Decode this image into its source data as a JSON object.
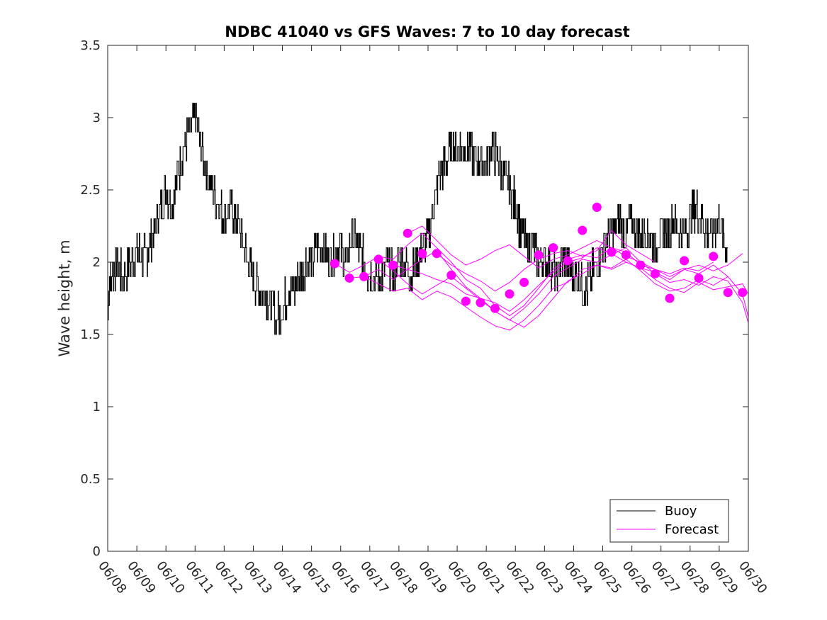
{
  "chart_data": {
    "type": "line",
    "title": "NDBC 41040 vs GFS Waves: 7 to 10 day forecast",
    "xlabel": "",
    "ylabel": "Wave height, m",
    "xlim": [
      "06/08",
      "06/30"
    ],
    "ylim": [
      0,
      3.5
    ],
    "yticks": [
      "0",
      "0.5",
      "1",
      "1.5",
      "2",
      "2.5",
      "3",
      "3.5"
    ],
    "xticks": [
      "06/08",
      "06/09",
      "06/10",
      "06/11",
      "06/12",
      "06/13",
      "06/14",
      "06/15",
      "06/16",
      "06/17",
      "06/18",
      "06/19",
      "06/20",
      "06/21",
      "06/22",
      "06/23",
      "06/24",
      "06/25",
      "06/26",
      "06/27",
      "06/28",
      "06/29",
      "06/30"
    ],
    "grid": false,
    "legend_position": "bottom-right",
    "colors": {
      "buoy": "#000000",
      "forecast": "#ff00ff",
      "axis": "#262626"
    },
    "series": [
      {
        "name": "Buoy",
        "color": "#000000",
        "x_days": [
          0.0,
          0.1,
          0.3,
          0.5,
          0.8,
          1.0,
          1.2,
          1.4,
          1.6,
          1.8,
          2.0,
          2.2,
          2.4,
          2.6,
          2.8,
          3.0,
          3.2,
          3.4,
          3.6,
          3.8,
          4.0,
          4.2,
          4.4,
          4.6,
          4.8,
          5.0,
          5.2,
          5.4,
          5.6,
          5.8,
          6.0,
          6.2,
          6.4,
          6.6,
          6.8,
          7.0,
          7.2,
          7.4,
          7.6,
          7.8,
          8.0,
          8.2,
          8.4,
          8.6,
          8.8,
          9.0,
          9.2,
          9.4,
          9.6,
          9.8,
          10.0,
          10.2,
          10.4,
          10.6,
          10.8,
          11.0,
          11.2,
          11.4,
          11.6,
          11.8,
          12.0,
          12.2,
          12.4,
          12.6,
          12.8,
          13.0,
          13.2,
          13.4,
          13.6,
          13.8,
          14.0,
          14.2,
          14.4,
          14.6,
          14.8,
          15.0,
          15.2,
          15.4,
          15.6,
          15.8,
          16.0,
          16.2,
          16.4,
          16.6,
          16.8,
          17.0,
          17.2,
          17.4,
          17.6,
          17.8,
          18.0,
          18.2,
          18.4,
          18.6,
          18.8,
          19.0,
          19.2,
          19.4,
          19.6,
          19.8,
          20.0,
          20.2,
          20.4,
          20.6,
          20.8,
          21.0,
          21.2,
          21.3
        ],
        "y": [
          1.7,
          1.9,
          2.0,
          1.9,
          2.0,
          2.1,
          2.0,
          2.1,
          2.2,
          2.4,
          2.5,
          2.4,
          2.6,
          2.8,
          2.9,
          3.0,
          2.8,
          2.6,
          2.5,
          2.4,
          2.3,
          2.4,
          2.3,
          2.2,
          2.0,
          1.9,
          1.8,
          1.8,
          1.7,
          1.6,
          1.7,
          1.8,
          1.8,
          1.9,
          2.0,
          2.0,
          2.1,
          2.1,
          2.0,
          2.1,
          2.1,
          2.0,
          2.2,
          2.1,
          2.0,
          1.9,
          1.9,
          1.9,
          2.0,
          1.9,
          2.0,
          2.0,
          1.9,
          2.0,
          2.1,
          2.2,
          2.4,
          2.6,
          2.7,
          2.8,
          2.8,
          2.8,
          2.8,
          2.7,
          2.7,
          2.7,
          2.8,
          2.7,
          2.6,
          2.5,
          2.4,
          2.2,
          2.1,
          2.1,
          2.0,
          2.0,
          2.0,
          1.9,
          2.0,
          2.0,
          1.9,
          1.9,
          1.8,
          1.9,
          2.0,
          2.1,
          2.2,
          2.2,
          2.3,
          2.2,
          2.3,
          2.2,
          2.2,
          2.2,
          2.1,
          2.2,
          2.2,
          2.3,
          2.2,
          2.2,
          2.3,
          2.4,
          2.3,
          2.2,
          2.2,
          2.3,
          2.1,
          2.1
        ]
      },
      {
        "name": "Forecast",
        "color": "#ff00ff",
        "markers": {
          "x_days": [
            7.8,
            8.3,
            8.8,
            9.3,
            9.8,
            10.3,
            10.8,
            11.3,
            11.8,
            12.3,
            12.8,
            13.3,
            13.8,
            14.3,
            14.8,
            15.3,
            15.8,
            16.3,
            16.8,
            17.3,
            17.8,
            18.3,
            18.8,
            19.3,
            19.8,
            20.3,
            20.8,
            21.3,
            21.8
          ],
          "y": [
            1.99,
            1.89,
            1.9,
            2.02,
            1.98,
            2.2,
            2.06,
            2.06,
            1.91,
            1.73,
            1.72,
            1.68,
            1.78,
            1.86,
            2.05,
            2.1,
            2.01,
            2.22,
            2.38,
            2.07,
            2.05,
            1.98,
            1.92,
            1.75,
            2.01,
            1.89,
            2.04,
            1.79,
            1.79
          ]
        },
        "runs": [
          {
            "x_days": [
              7.8,
              8.3,
              8.8,
              9.3,
              9.8,
              10.3,
              10.8,
              11.3,
              11.8,
              12.3,
              12.8,
              13.3,
              13.8,
              14.3,
              14.8,
              15.3,
              15.8,
              16.3,
              16.8,
              17.3,
              17.8,
              18.3,
              18.8,
              19.3,
              19.8,
              20.3,
              20.8,
              21.3,
              21.8,
              22.0
            ],
            "y": [
              1.99,
              1.93,
              1.98,
              2.04,
              2.02,
              2.12,
              2.2,
              2.1,
              2.0,
              1.88,
              1.82,
              1.7,
              1.63,
              1.7,
              1.82,
              1.95,
              2.02,
              2.05,
              2.03,
              2.1,
              2.07,
              1.98,
              1.95,
              1.9,
              1.95,
              1.92,
              1.98,
              1.9,
              1.78,
              1.62
            ]
          },
          {
            "x_days": [
              8.3,
              8.8,
              9.3,
              9.8,
              10.3,
              10.8,
              11.3,
              11.8,
              12.3,
              12.8,
              13.3,
              13.8,
              14.3,
              14.8,
              15.3,
              15.8,
              16.3,
              16.8,
              17.3,
              17.8,
              18.3,
              18.8,
              19.3,
              19.8,
              20.3,
              20.8,
              21.3,
              21.8,
              22.0
            ],
            "y": [
              1.89,
              1.9,
              1.95,
              1.88,
              1.95,
              2.02,
              2.08,
              1.95,
              1.83,
              1.75,
              1.66,
              1.6,
              1.68,
              1.78,
              1.9,
              1.96,
              2.02,
              2.0,
              2.05,
              2.1,
              2.0,
              1.92,
              1.86,
              1.88,
              1.84,
              1.9,
              1.87,
              1.72,
              1.58
            ]
          },
          {
            "x_days": [
              8.8,
              9.3,
              9.8,
              10.3,
              10.8,
              11.3,
              11.8,
              12.3,
              12.8,
              13.3,
              13.8,
              14.3,
              14.8,
              15.3,
              15.8,
              16.3,
              16.8,
              17.3,
              17.8,
              18.3,
              18.8,
              19.3,
              19.8,
              20.3,
              20.8,
              21.3,
              21.8,
              22.0
            ],
            "y": [
              1.9,
              1.85,
              1.8,
              1.82,
              1.74,
              1.8,
              1.76,
              1.69,
              1.62,
              1.56,
              1.53,
              1.6,
              1.7,
              1.82,
              1.86,
              1.95,
              1.98,
              1.95,
              2.0,
              1.96,
              1.88,
              1.82,
              1.79,
              1.86,
              1.81,
              1.83,
              1.85,
              1.78
            ]
          },
          {
            "x_days": [
              9.3,
              9.8,
              10.3,
              10.8,
              11.3,
              11.8,
              12.3,
              12.8,
              13.3,
              13.8,
              14.3,
              14.8,
              15.3,
              15.8,
              16.3,
              16.8,
              17.3,
              17.8,
              18.3,
              18.8,
              19.3,
              19.8,
              20.3,
              20.8,
              21.3
            ],
            "y": [
              2.02,
              1.94,
              1.85,
              1.78,
              1.84,
              1.9,
              1.82,
              1.74,
              1.66,
              1.6,
              1.55,
              1.63,
              1.75,
              1.87,
              1.92,
              1.98,
              1.96,
              2.02,
              1.94,
              1.85,
              1.8,
              1.82,
              1.88,
              1.84,
              1.9
            ]
          },
          {
            "x_days": [
              9.8,
              10.3,
              10.8,
              11.3,
              11.8,
              12.3,
              12.8,
              13.3,
              13.8,
              14.3,
              14.8,
              15.3,
              15.8,
              16.3,
              16.8,
              17.3,
              17.8,
              18.3,
              18.8,
              19.3,
              19.8,
              20.3,
              20.8,
              21.3,
              21.8
            ],
            "y": [
              1.98,
              1.95,
              1.92,
              1.88,
              1.85,
              1.78,
              1.75,
              1.72,
              1.66,
              1.74,
              1.84,
              1.93,
              2.0,
              2.03,
              2.1,
              2.06,
              2.0,
              1.96,
              1.93,
              1.88,
              1.95,
              1.98,
              1.94,
              1.98,
              2.06
            ]
          },
          {
            "x_days": [
              10.3,
              10.8,
              11.3,
              11.8,
              12.3,
              12.8,
              13.3,
              13.8,
              14.3,
              14.8,
              15.3,
              15.8,
              16.3,
              16.8,
              17.3,
              17.8,
              18.3,
              18.8,
              19.3,
              19.8,
              20.3,
              20.8
            ],
            "y": [
              2.2,
              2.25,
              2.15,
              2.05,
              1.98,
              2.02,
              2.08,
              2.12,
              2.04,
              1.96,
              2.02,
              2.05,
              2.1,
              2.15,
              2.1,
              2.04,
              2.0,
              1.95,
              1.92,
              1.96,
              1.94,
              2.0
            ]
          },
          {
            "x_days": [
              11.3,
              11.8,
              12.3,
              12.8,
              13.3,
              13.8,
              14.3,
              14.8,
              15.3,
              15.8,
              16.3,
              16.8,
              17.3,
              17.8,
              18.3,
              18.8
            ],
            "y": [
              2.06,
              1.98,
              1.92,
              1.87,
              1.8,
              1.86,
              1.95,
              2.02,
              2.06,
              2.08,
              2.04,
              2.08,
              2.22,
              2.12,
              2.06,
              2.0
            ]
          }
        ]
      }
    ]
  }
}
